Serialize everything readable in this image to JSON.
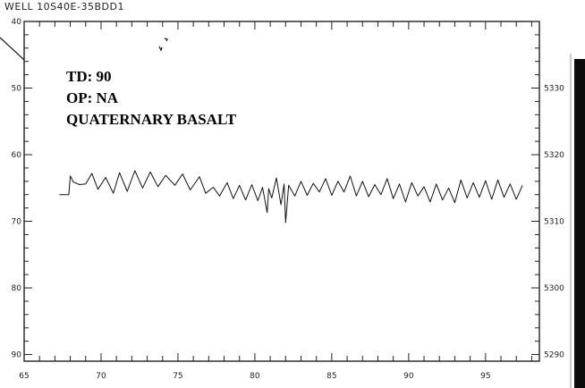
{
  "chart_data": {
    "type": "line",
    "title": "WELL 10S40E-35BDD1",
    "annotations": [
      "TD: 90",
      "OP: NA",
      "QUATERNARY BASALT"
    ],
    "xlabel": "",
    "ylabel": "",
    "x_ticks": [
      65,
      70,
      75,
      80,
      85,
      90,
      95
    ],
    "y_left_ticks": [
      40,
      50,
      60,
      70,
      80,
      90
    ],
    "y_right_ticks": [
      5330,
      5320,
      5310,
      5300,
      5290
    ],
    "xlim": [
      65,
      98.5
    ],
    "ylim": [
      40,
      91
    ],
    "y_inverted": true,
    "grid": false,
    "series": [
      {
        "x": [
          67.3,
          67.9,
          68.0,
          68.2,
          68.6,
          69.0,
          69.4,
          69.8,
          70.3,
          70.8,
          71.2,
          71.7,
          72.2,
          72.7,
          73.2,
          73.7,
          74.2,
          74.8,
          75.3,
          75.8,
          76.4,
          76.8,
          77.3,
          77.7,
          78.2,
          78.6,
          79.0,
          79.4,
          79.8,
          80.2,
          80.5,
          80.8,
          80.9,
          81.1,
          81.4,
          81.7,
          81.9,
          82.0,
          82.2,
          82.6,
          83.0,
          83.4,
          83.8,
          84.2,
          84.6,
          85.0,
          85.4,
          85.8,
          86.2,
          86.6,
          87.0,
          87.4,
          87.8,
          88.2,
          88.6,
          89.0,
          89.4,
          89.8,
          90.2,
          90.6,
          91.0,
          91.4,
          91.8,
          92.2,
          92.6,
          93.0,
          93.4,
          93.8,
          94.2,
          94.6,
          95.0,
          95.4,
          95.8,
          96.2,
          96.6,
          97.0,
          97.4
        ],
        "values": [
          66.0,
          66.0,
          63.2,
          64.1,
          64.5,
          64.4,
          62.8,
          65.2,
          63.4,
          65.8,
          62.7,
          65.5,
          62.4,
          65.0,
          62.6,
          64.8,
          63.1,
          64.6,
          62.9,
          65.3,
          63.3,
          65.8,
          64.9,
          66.2,
          64.2,
          66.6,
          64.6,
          66.8,
          64.5,
          66.9,
          64.9,
          68.7,
          65.1,
          66.5,
          63.5,
          67.5,
          64.4,
          70.2,
          64.6,
          66.2,
          64.0,
          66.1,
          64.3,
          65.6,
          63.6,
          66.1,
          64.0,
          65.6,
          63.2,
          66.2,
          64.0,
          66.3,
          64.5,
          66.0,
          63.6,
          66.6,
          64.4,
          67.1,
          64.2,
          66.2,
          64.8,
          67.1,
          64.4,
          66.8,
          65.0,
          67.2,
          63.8,
          66.5,
          64.2,
          66.4,
          63.9,
          66.7,
          63.8,
          66.4,
          64.4,
          66.7,
          64.6
        ]
      }
    ]
  }
}
